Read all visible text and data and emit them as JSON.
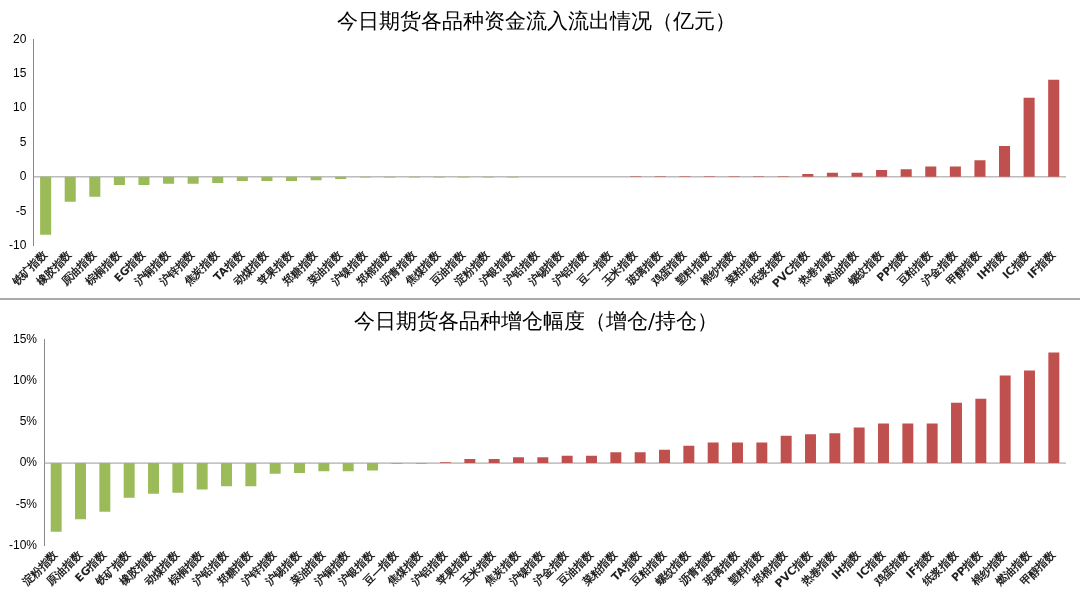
{
  "chart_data": [
    {
      "type": "bar",
      "title": "今日期货各品种资金流入流出情况（亿元）",
      "categories": [
        "铁矿指数",
        "橡胶指数",
        "原油指数",
        "棕榈指数",
        "EG指数",
        "沪铜指数",
        "沪锌指数",
        "焦炭指数",
        "TA指数",
        "动煤指数",
        "苹果指数",
        "郑糖指数",
        "菜油指数",
        "沪镍指数",
        "郑棉指数",
        "沥青指数",
        "焦煤指数",
        "豆油指数",
        "淀粉指数",
        "沪银指数",
        "沪铅指数",
        "沪锡指数",
        "沪铝指数",
        "豆一指数",
        "玉米指数",
        "玻璃指数",
        "鸡蛋指数",
        "塑料指数",
        "棉纱指数",
        "菜粕指数",
        "纸浆指数",
        "PVC指数",
        "热卷指数",
        "燃油指数",
        "螺纹指数",
        "PP指数",
        "豆粕指数",
        "沪金指数",
        "甲醇指数",
        "IH指数",
        "IC指数",
        "IF指数"
      ],
      "values": [
        -8.4,
        -3.6,
        -2.9,
        -1.2,
        -1.2,
        -1.0,
        -1.0,
        -0.9,
        -0.6,
        -0.6,
        -0.6,
        -0.5,
        -0.3,
        -0.1,
        -0.1,
        -0.1,
        -0.1,
        -0.1,
        -0.1,
        -0.1,
        0,
        0,
        0,
        0,
        0.1,
        0.1,
        0.1,
        0.1,
        0.1,
        0.1,
        0.1,
        0.4,
        0.6,
        0.6,
        1.0,
        1.1,
        1.5,
        1.5,
        2.4,
        4.5,
        11.5,
        14.1
      ],
      "colors": [
        "#9bbb59",
        "#9bbb59",
        "#9bbb59",
        "#9bbb59",
        "#9bbb59",
        "#9bbb59",
        "#9bbb59",
        "#9bbb59",
        "#9bbb59",
        "#9bbb59",
        "#9bbb59",
        "#9bbb59",
        "#9bbb59",
        "#9bbb59",
        "#9bbb59",
        "#9bbb59",
        "#9bbb59",
        "#9bbb59",
        "#9bbb59",
        "#9bbb59",
        "#9bbb59",
        "#9bbb59",
        "#c0504d",
        "#c0504d",
        "#c0504d",
        "#c0504d",
        "#c0504d",
        "#c0504d",
        "#c0504d",
        "#c0504d",
        "#c0504d",
        "#c0504d",
        "#c0504d",
        "#c0504d",
        "#c0504d",
        "#c0504d",
        "#c0504d",
        "#c0504d",
        "#c0504d",
        "#c0504d",
        "#c0504d",
        "#c0504d"
      ],
      "ylim": [
        -10,
        20
      ],
      "yticks": [
        -10,
        -5,
        0,
        5,
        10,
        15,
        20
      ]
    },
    {
      "type": "bar",
      "title": "今日期货各品种增仓幅度（增仓/持仓）",
      "categories": [
        "淀粉指数",
        "原油指数",
        "EG指数",
        "铁矿指数",
        "橡胶指数",
        "动煤指数",
        "棕榈指数",
        "沪铅指数",
        "郑糖指数",
        "沪锌指数",
        "沪锡指数",
        "菜油指数",
        "沪铜指数",
        "沪银指数",
        "豆一指数",
        "焦煤指数",
        "沪铝指数",
        "苹果指数",
        "玉米指数",
        "焦炭指数",
        "沪镍指数",
        "沪金指数",
        "豆油指数",
        "菜粕指数",
        "TA指数",
        "豆粕指数",
        "螺纹指数",
        "沥青指数",
        "玻璃指数",
        "塑料指数",
        "郑棉指数",
        "PVC指数",
        "热卷指数",
        "IH指数",
        "IC指数",
        "鸡蛋指数",
        "IF指数",
        "纸浆指数",
        "PP指数",
        "棉纱指数",
        "燃油指数",
        "甲醇指数"
      ],
      "values": [
        -8.3,
        -6.8,
        -5.9,
        -4.2,
        -3.7,
        -3.6,
        -3.2,
        -2.8,
        -2.8,
        -1.3,
        -1.2,
        -1.0,
        -1.0,
        -0.9,
        -0.1,
        -0.1,
        0.1,
        0.5,
        0.5,
        0.7,
        0.7,
        0.9,
        0.9,
        1.3,
        1.3,
        1.6,
        2.1,
        2.5,
        2.5,
        2.5,
        3.3,
        3.5,
        3.6,
        4.3,
        4.8,
        4.8,
        4.8,
        7.3,
        7.8,
        10.6,
        11.2,
        13.4
      ],
      "colors": [
        "#9bbb59",
        "#9bbb59",
        "#9bbb59",
        "#9bbb59",
        "#9bbb59",
        "#9bbb59",
        "#9bbb59",
        "#9bbb59",
        "#9bbb59",
        "#9bbb59",
        "#9bbb59",
        "#9bbb59",
        "#9bbb59",
        "#9bbb59",
        "#9bbb59",
        "#9bbb59",
        "#c0504d",
        "#c0504d",
        "#c0504d",
        "#c0504d",
        "#c0504d",
        "#c0504d",
        "#c0504d",
        "#c0504d",
        "#c0504d",
        "#c0504d",
        "#c0504d",
        "#c0504d",
        "#c0504d",
        "#c0504d",
        "#c0504d",
        "#c0504d",
        "#c0504d",
        "#c0504d",
        "#c0504d",
        "#c0504d",
        "#c0504d",
        "#c0504d",
        "#c0504d",
        "#c0504d",
        "#c0504d",
        "#c0504d"
      ],
      "ylim": [
        -10,
        15
      ],
      "yticks": [
        {
          "value": -10,
          "label": "-10%"
        },
        {
          "value": -5,
          "label": "-5%"
        },
        {
          "value": 0,
          "label": "0%"
        },
        {
          "value": 5,
          "label": "5%"
        },
        {
          "value": 10,
          "label": "10%"
        },
        {
          "value": 15,
          "label": "15%"
        }
      ]
    }
  ]
}
